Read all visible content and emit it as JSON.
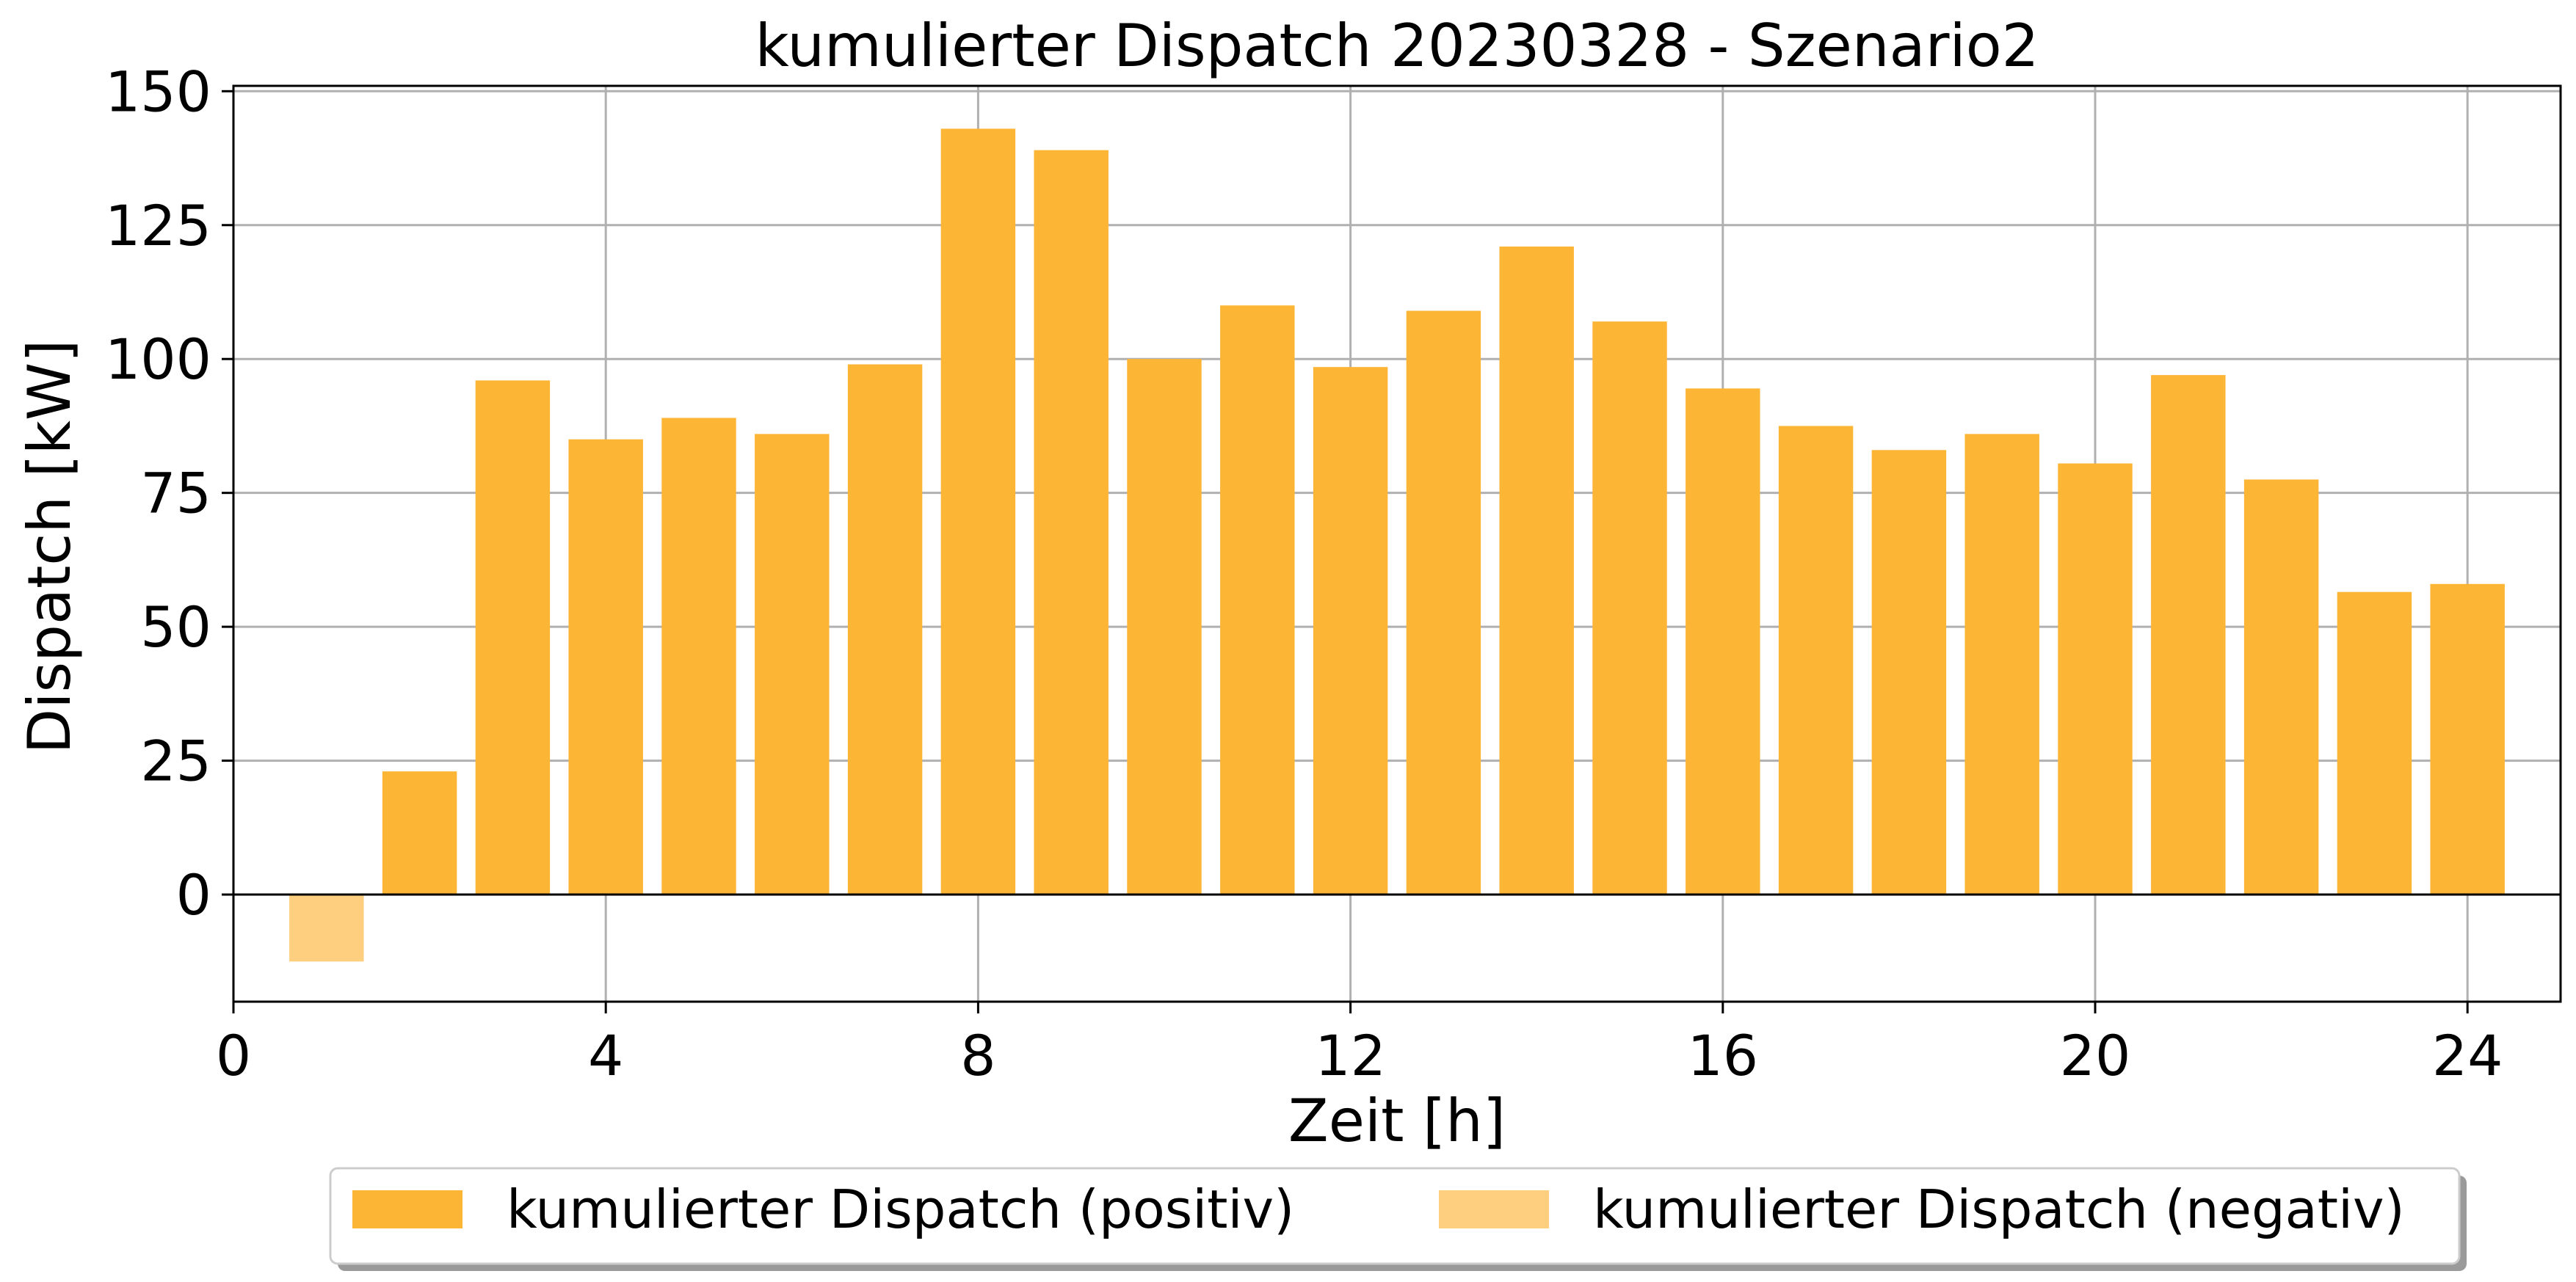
{
  "chart_data": {
    "type": "bar",
    "title": "kumulierter Dispatch 20230328 - Szenario2",
    "xlabel": "Zeit [h]",
    "ylabel": "Dispatch [kW]",
    "xlim": [
      0,
      25
    ],
    "ylim": [
      -20,
      151
    ],
    "xticks": [
      0,
      4,
      8,
      12,
      16,
      20,
      24
    ],
    "yticks": [
      0,
      25,
      50,
      75,
      100,
      125,
      150
    ],
    "grid": true,
    "legend_position": "bottom-center",
    "x": [
      1,
      2,
      3,
      4,
      5,
      6,
      7,
      8,
      9,
      10,
      11,
      12,
      13,
      14,
      15,
      16,
      17,
      18,
      19,
      20,
      21,
      22,
      23,
      24
    ],
    "series": [
      {
        "name": "kumulierter Dispatch (positiv)",
        "color": "#fdb535",
        "values": [
          0,
          23,
          96,
          85,
          89,
          86,
          99,
          143,
          139,
          100,
          110,
          98.5,
          109,
          121,
          107,
          94.5,
          87.5,
          83,
          86,
          80.5,
          97,
          77.5,
          56.5,
          58
        ]
      },
      {
        "name": "kumulierter Dispatch (negativ)",
        "color": "#fecf7f",
        "values": [
          -12.5,
          0,
          0,
          0,
          0,
          0,
          0,
          0,
          0,
          0,
          0,
          0,
          0,
          0,
          0,
          0,
          0,
          0,
          0,
          0,
          0,
          0,
          0,
          0
        ]
      }
    ]
  }
}
